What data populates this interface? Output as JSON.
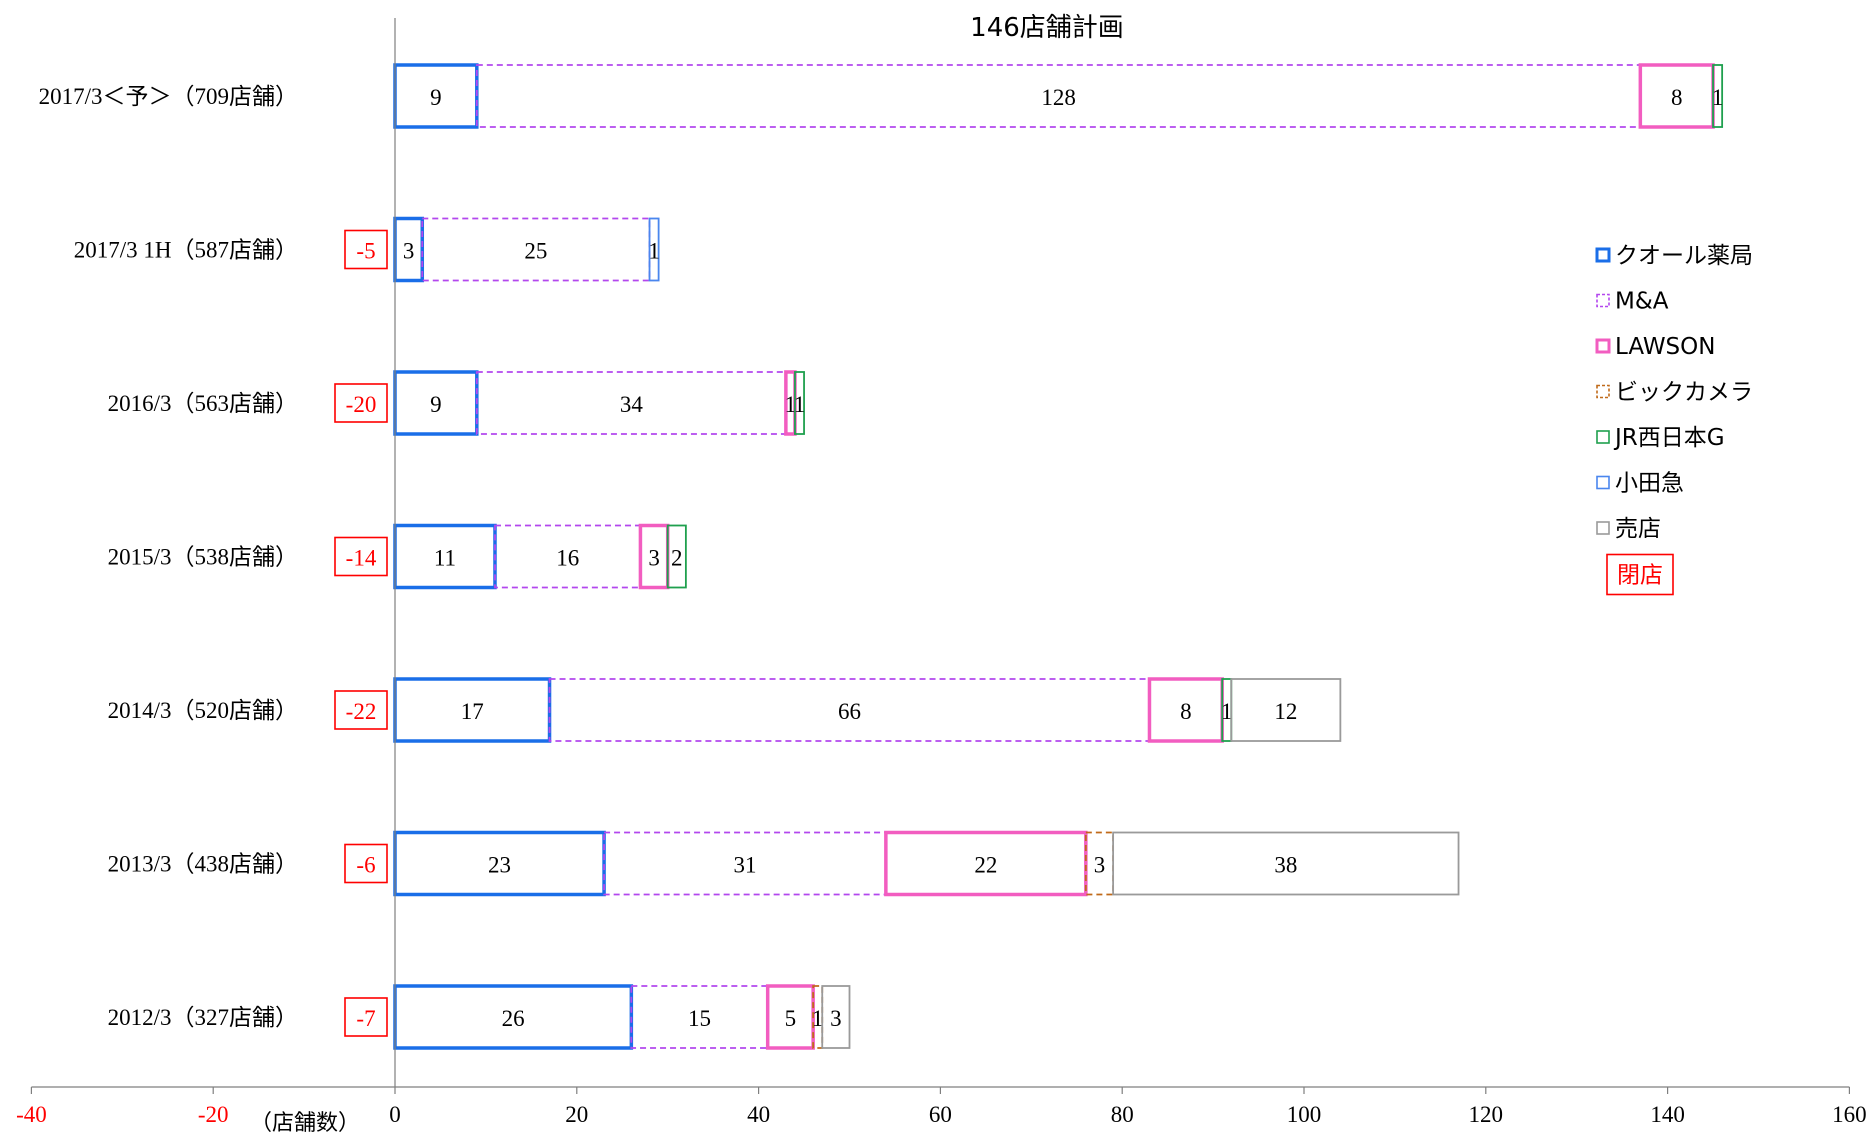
{
  "chart_data": {
    "type": "bar",
    "orientation": "horizontal",
    "stacked": true,
    "title": "146店舗計画",
    "xlabel": "（店舗数）",
    "xlim": [
      -40,
      160
    ],
    "xticks": [
      -40,
      -20,
      0,
      20,
      40,
      60,
      80,
      100,
      120,
      140,
      160
    ],
    "negative_tick_color": "#ff0000",
    "grid": false,
    "legend_position": "right",
    "closure_label": "閉店",
    "closure_color": "#ff0000",
    "series": [
      {
        "name": "クオール薬局",
        "color": "#1a6ee8",
        "style": "solid-thick"
      },
      {
        "name": "M&A",
        "color": "#b347ee",
        "style": "dashed"
      },
      {
        "name": "LAWSON",
        "color": "#f25dc0",
        "style": "solid-thick"
      },
      {
        "name": "ビックカメラ",
        "color": "#c06a1a",
        "style": "dashed"
      },
      {
        "name": "JR西日本G",
        "color": "#1fa04e",
        "style": "solid"
      },
      {
        "name": "小田急",
        "color": "#4a86ee",
        "style": "solid"
      },
      {
        "name": "売店",
        "color": "#9a9a9a",
        "style": "solid"
      }
    ],
    "categories": [
      {
        "label": "2017/3＜予＞（709店舗）",
        "closure": null,
        "values": [
          9,
          128,
          8,
          0,
          1,
          0,
          0
        ],
        "labels": [
          "9",
          "128",
          "8",
          "",
          "1",
          "",
          ""
        ]
      },
      {
        "label": "2017/3 1H（587店舗）",
        "closure": "-5",
        "values": [
          3,
          25,
          0,
          0,
          0,
          1,
          0
        ],
        "labels": [
          "3",
          "25",
          "",
          "",
          "",
          "1",
          ""
        ]
      },
      {
        "label": "2016/3（563店舗）",
        "closure": "-20",
        "values": [
          9,
          34,
          1,
          0,
          1,
          0,
          0
        ],
        "labels": [
          "9",
          "34",
          "1",
          "",
          "1",
          "",
          ""
        ]
      },
      {
        "label": "2015/3（538店舗）",
        "closure": "-14",
        "values": [
          11,
          16,
          3,
          0,
          2,
          0,
          0
        ],
        "labels": [
          "11",
          "16",
          "3",
          "",
          "2",
          "",
          ""
        ]
      },
      {
        "label": "2014/3（520店舗）",
        "closure": "-22",
        "values": [
          17,
          66,
          8,
          0,
          1,
          0,
          12
        ],
        "labels": [
          "17",
          "66",
          "8",
          "",
          "1",
          "",
          "12"
        ]
      },
      {
        "label": "2013/3（438店舗）",
        "closure": "-6",
        "values": [
          23,
          31,
          22,
          3,
          0,
          0,
          38
        ],
        "labels": [
          "23",
          "31",
          "22",
          "3",
          "",
          "",
          "38"
        ]
      },
      {
        "label": "2012/3（327店舗）",
        "closure": "-7",
        "values": [
          26,
          15,
          5,
          1,
          0,
          0,
          3
        ],
        "labels": [
          "26",
          "15",
          "5",
          "1",
          "",
          "",
          "3"
        ]
      }
    ]
  }
}
